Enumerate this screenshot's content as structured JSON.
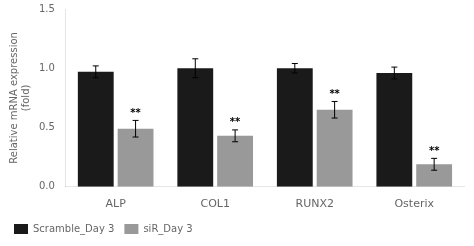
{
  "chart_data": {
    "type": "bar",
    "categories": [
      "ALP",
      "COL1",
      "RUNX2",
      "Osterix"
    ],
    "series": [
      {
        "name": "Scramble_Day 3",
        "color": "#1a1a1a",
        "values": [
          0.97,
          1.0,
          1.0,
          0.96
        ],
        "errors": [
          0.05,
          0.08,
          0.04,
          0.05
        ]
      },
      {
        "name": "siR_Day 3",
        "color": "#999999",
        "values": [
          0.49,
          0.43,
          0.65,
          0.19
        ],
        "errors": [
          0.07,
          0.05,
          0.07,
          0.05
        ]
      }
    ],
    "ylabel": "Relative mRNA expression\n(fold)",
    "ylim": [
      0,
      1.5
    ],
    "yticks": [
      {
        "value": 0,
        "label": "0.0"
      },
      0.5,
      {
        "value": 1,
        "label": "1.0"
      },
      1.5
    ],
    "annotations": [
      {
        "series": "siR_Day 3",
        "category": "ALP",
        "text": "**"
      },
      {
        "series": "siR_Day 3",
        "category": "COL1",
        "text": "**"
      },
      {
        "series": "siR_Day 3",
        "category": "RUNX2",
        "text": "**"
      },
      {
        "series": "siR_Day 3",
        "category": "Osterix",
        "text": "**"
      }
    ],
    "grid": false,
    "legend": "bottom"
  }
}
